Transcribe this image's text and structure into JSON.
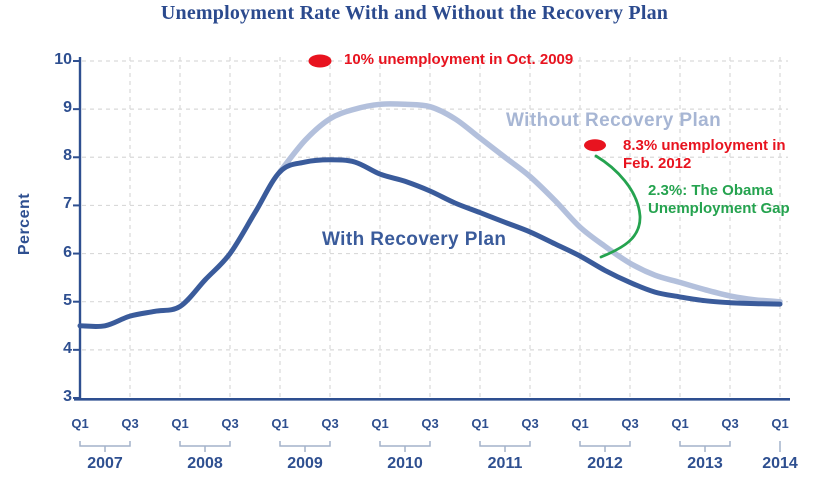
{
  "title": "Unemployment Rate With and Without the Recovery Plan",
  "colors": {
    "title_blue": "#2b4a8e",
    "axis_blue": "#2e4f90",
    "with_plan_line": "#3a5b9b",
    "without_plan_line": "#b3c0dc",
    "without_label": "#a7b6d4",
    "annotation_red": "#e8131f",
    "annotation_green": "#25a34f",
    "gridline_gray": "#d9d9d9",
    "bracket_gray": "#a3b2ca"
  },
  "labels": {
    "with_plan": "With Recovery Plan",
    "without_plan": "Without Recovery Plan",
    "note_oct2009": "10% unemployment in Oct. 2009",
    "note_feb2012_l1": "8.3% unemployment in",
    "note_feb2012_l2": "Feb. 2012",
    "note_gap_l1": "2.3%: The Obama",
    "note_gap_l2": "Unemployment Gap"
  },
  "chart_data": {
    "type": "line",
    "title": "Unemployment Rate With and Without the Recovery Plan",
    "xlabel": "",
    "ylabel": "Percent",
    "ylim": [
      3,
      10
    ],
    "y_ticks": [
      10,
      9,
      8,
      7,
      6,
      5,
      4,
      3
    ],
    "grid": "light dashed; horizontal every 1%, vertical every 2 quarters",
    "legend_position": "labels drawn on curves",
    "x_axis": {
      "unit": "quarter",
      "years": [
        {
          "label": "2007",
          "quarters": [
            "Q1",
            "Q3"
          ]
        },
        {
          "label": "2008",
          "quarters": [
            "Q1",
            "Q3"
          ]
        },
        {
          "label": "2009",
          "quarters": [
            "Q1",
            "Q3"
          ]
        },
        {
          "label": "2010",
          "quarters": [
            "Q1",
            "Q3"
          ]
        },
        {
          "label": "2011",
          "quarters": [
            "Q1",
            "Q3"
          ]
        },
        {
          "label": "2012",
          "quarters": [
            "Q1",
            "Q3"
          ]
        },
        {
          "label": "2013",
          "quarters": [
            "Q1",
            "Q3"
          ]
        },
        {
          "label": "2014",
          "quarters": [
            "Q1"
          ]
        }
      ]
    },
    "categories": [
      "2007Q1",
      "2007Q2",
      "2007Q3",
      "2007Q4",
      "2008Q1",
      "2008Q2",
      "2008Q3",
      "2008Q4",
      "2009Q1",
      "2009Q2",
      "2009Q3",
      "2009Q4",
      "2010Q1",
      "2010Q2",
      "2010Q3",
      "2010Q4",
      "2011Q1",
      "2011Q2",
      "2011Q3",
      "2011Q4",
      "2012Q1",
      "2012Q2",
      "2012Q3",
      "2012Q4",
      "2013Q1",
      "2013Q2",
      "2013Q3",
      "2013Q4",
      "2014Q1"
    ],
    "series": [
      {
        "name": "With Recovery Plan",
        "color": "#3a5b9b",
        "values": [
          4.5,
          4.5,
          4.7,
          4.8,
          4.9,
          5.45,
          6.0,
          6.85,
          7.7,
          7.9,
          7.95,
          7.9,
          7.65,
          7.5,
          7.3,
          7.05,
          6.85,
          6.65,
          6.45,
          6.2,
          5.95,
          5.65,
          5.4,
          5.2,
          5.1,
          5.02,
          4.98,
          4.96,
          4.95
        ]
      },
      {
        "name": "Without Recovery Plan",
        "color": "#b3c0dc",
        "values": [
          null,
          null,
          null,
          null,
          null,
          null,
          null,
          null,
          7.7,
          8.35,
          8.8,
          9.0,
          9.1,
          9.1,
          9.05,
          8.8,
          8.4,
          8.0,
          7.6,
          7.1,
          6.55,
          6.15,
          5.8,
          5.55,
          5.4,
          5.25,
          5.12,
          5.04,
          5.0
        ]
      }
    ],
    "annotations": [
      {
        "id": "oct2009-dot",
        "type": "dot+label",
        "color": "#e8131f",
        "dot_quarter_index": 9.6,
        "dot_value": 10.0,
        "text": "10% unemployment in Oct. 2009"
      },
      {
        "id": "feb2012-dot",
        "type": "dot+label",
        "color": "#e8131f",
        "dot_quarter_index": 20.6,
        "dot_value": 8.25,
        "text": "8.3% unemployment in Feb. 2012"
      },
      {
        "id": "obama-gap",
        "type": "pointer+label",
        "color": "#25a34f",
        "text": "2.3%: The Obama Unemployment Gap",
        "points_to": "gap between actual 8.3% and With-Recovery-Plan curve (~6.0%) in early 2012"
      }
    ]
  }
}
